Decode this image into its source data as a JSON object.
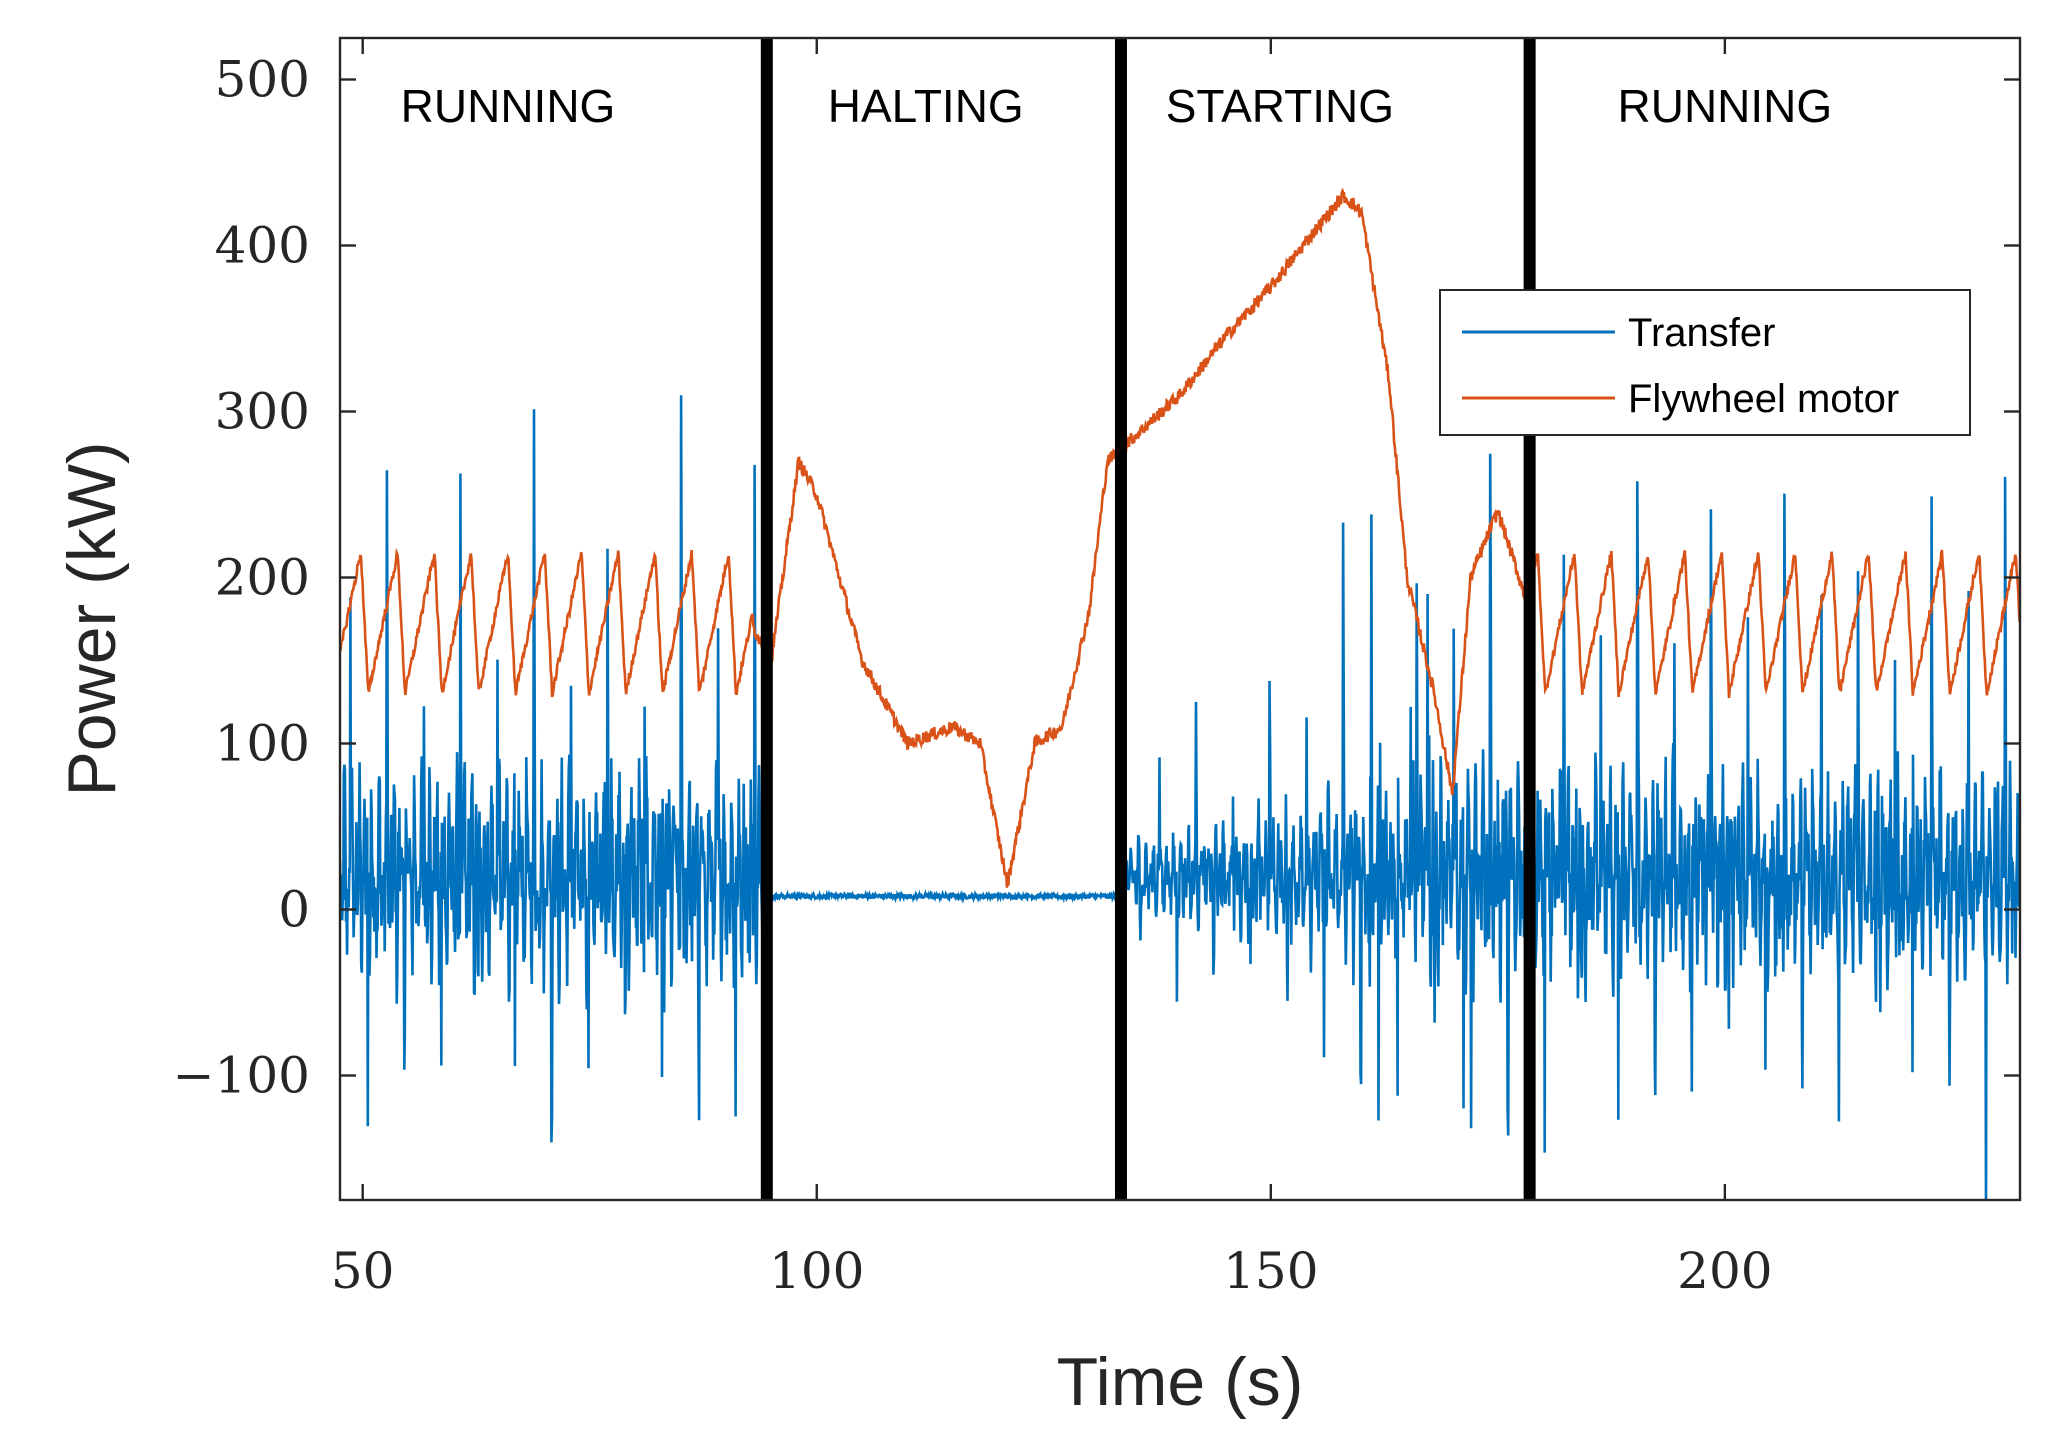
{
  "chart_data": {
    "type": "line",
    "title": "",
    "xlabel": "Time (s)",
    "ylabel": "Power (kW)",
    "xlim": [
      47.5,
      232.5
    ],
    "ylim": [
      -175,
      525
    ],
    "xticks": [
      50,
      100,
      150,
      200
    ],
    "yticks": [
      -100,
      0,
      100,
      200,
      300,
      400,
      500
    ],
    "ytick_labels": [
      "−100",
      "0",
      "100",
      "200",
      "300",
      "400",
      "500"
    ],
    "grid": false,
    "legend_position": "top-right",
    "colors": {
      "Transfer": "#0072BD",
      "Flywheel motor": "#D95319",
      "phase_line": "#000000",
      "axis": "#262626"
    },
    "phase_boundaries": [
      94.5,
      133.5,
      178.5
    ],
    "phases": [
      {
        "label": "RUNNING",
        "center": 66
      },
      {
        "label": "HALTING",
        "center": 112
      },
      {
        "label": "STARTING",
        "center": 151
      },
      {
        "label": "RUNNING",
        "center": 200
      }
    ],
    "series": [
      {
        "name": "Transfer",
        "description_shape": "oscillating ~[-160, 260] with ~4 s period while running; ~8 kW flat during halting; growing oscillation during starting",
        "x": [
          47.5,
          50,
          55,
          60,
          65,
          70,
          75,
          80,
          85,
          90,
          94.5,
          95,
          100,
          110,
          120,
          133,
          134,
          140,
          145,
          150,
          155,
          160,
          165,
          170,
          175,
          178.5,
          180,
          190,
          200,
          210,
          220,
          232.5
        ],
        "y": [
          20,
          20,
          20,
          20,
          20,
          20,
          20,
          20,
          20,
          20,
          20,
          8,
          8,
          8,
          8,
          8,
          20,
          20,
          20,
          20,
          20,
          20,
          20,
          20,
          20,
          20,
          20,
          20,
          20,
          20,
          20,
          20
        ]
      },
      {
        "name": "Flywheel motor",
        "x": [
          47.5,
          50,
          55,
          60,
          65,
          70,
          75,
          80,
          85,
          90,
          93,
          95,
          98,
          100,
          105,
          110,
          115,
          118,
          121,
          124,
          127,
          130,
          132,
          135,
          140,
          145,
          150,
          155,
          158,
          160,
          163,
          165,
          168,
          170,
          172,
          175,
          178.5,
          180,
          190,
          200,
          210,
          220,
          232.5
        ],
        "y": [
          190,
          170,
          170,
          170,
          170,
          170,
          170,
          170,
          170,
          170,
          170,
          150,
          270,
          250,
          150,
          100,
          110,
          100,
          15,
          100,
          110,
          180,
          270,
          285,
          310,
          345,
          375,
          410,
          430,
          420,
          320,
          200,
          130,
          70,
          200,
          240,
          180,
          195,
          170,
          170,
          170,
          170,
          170
        ]
      }
    ]
  }
}
